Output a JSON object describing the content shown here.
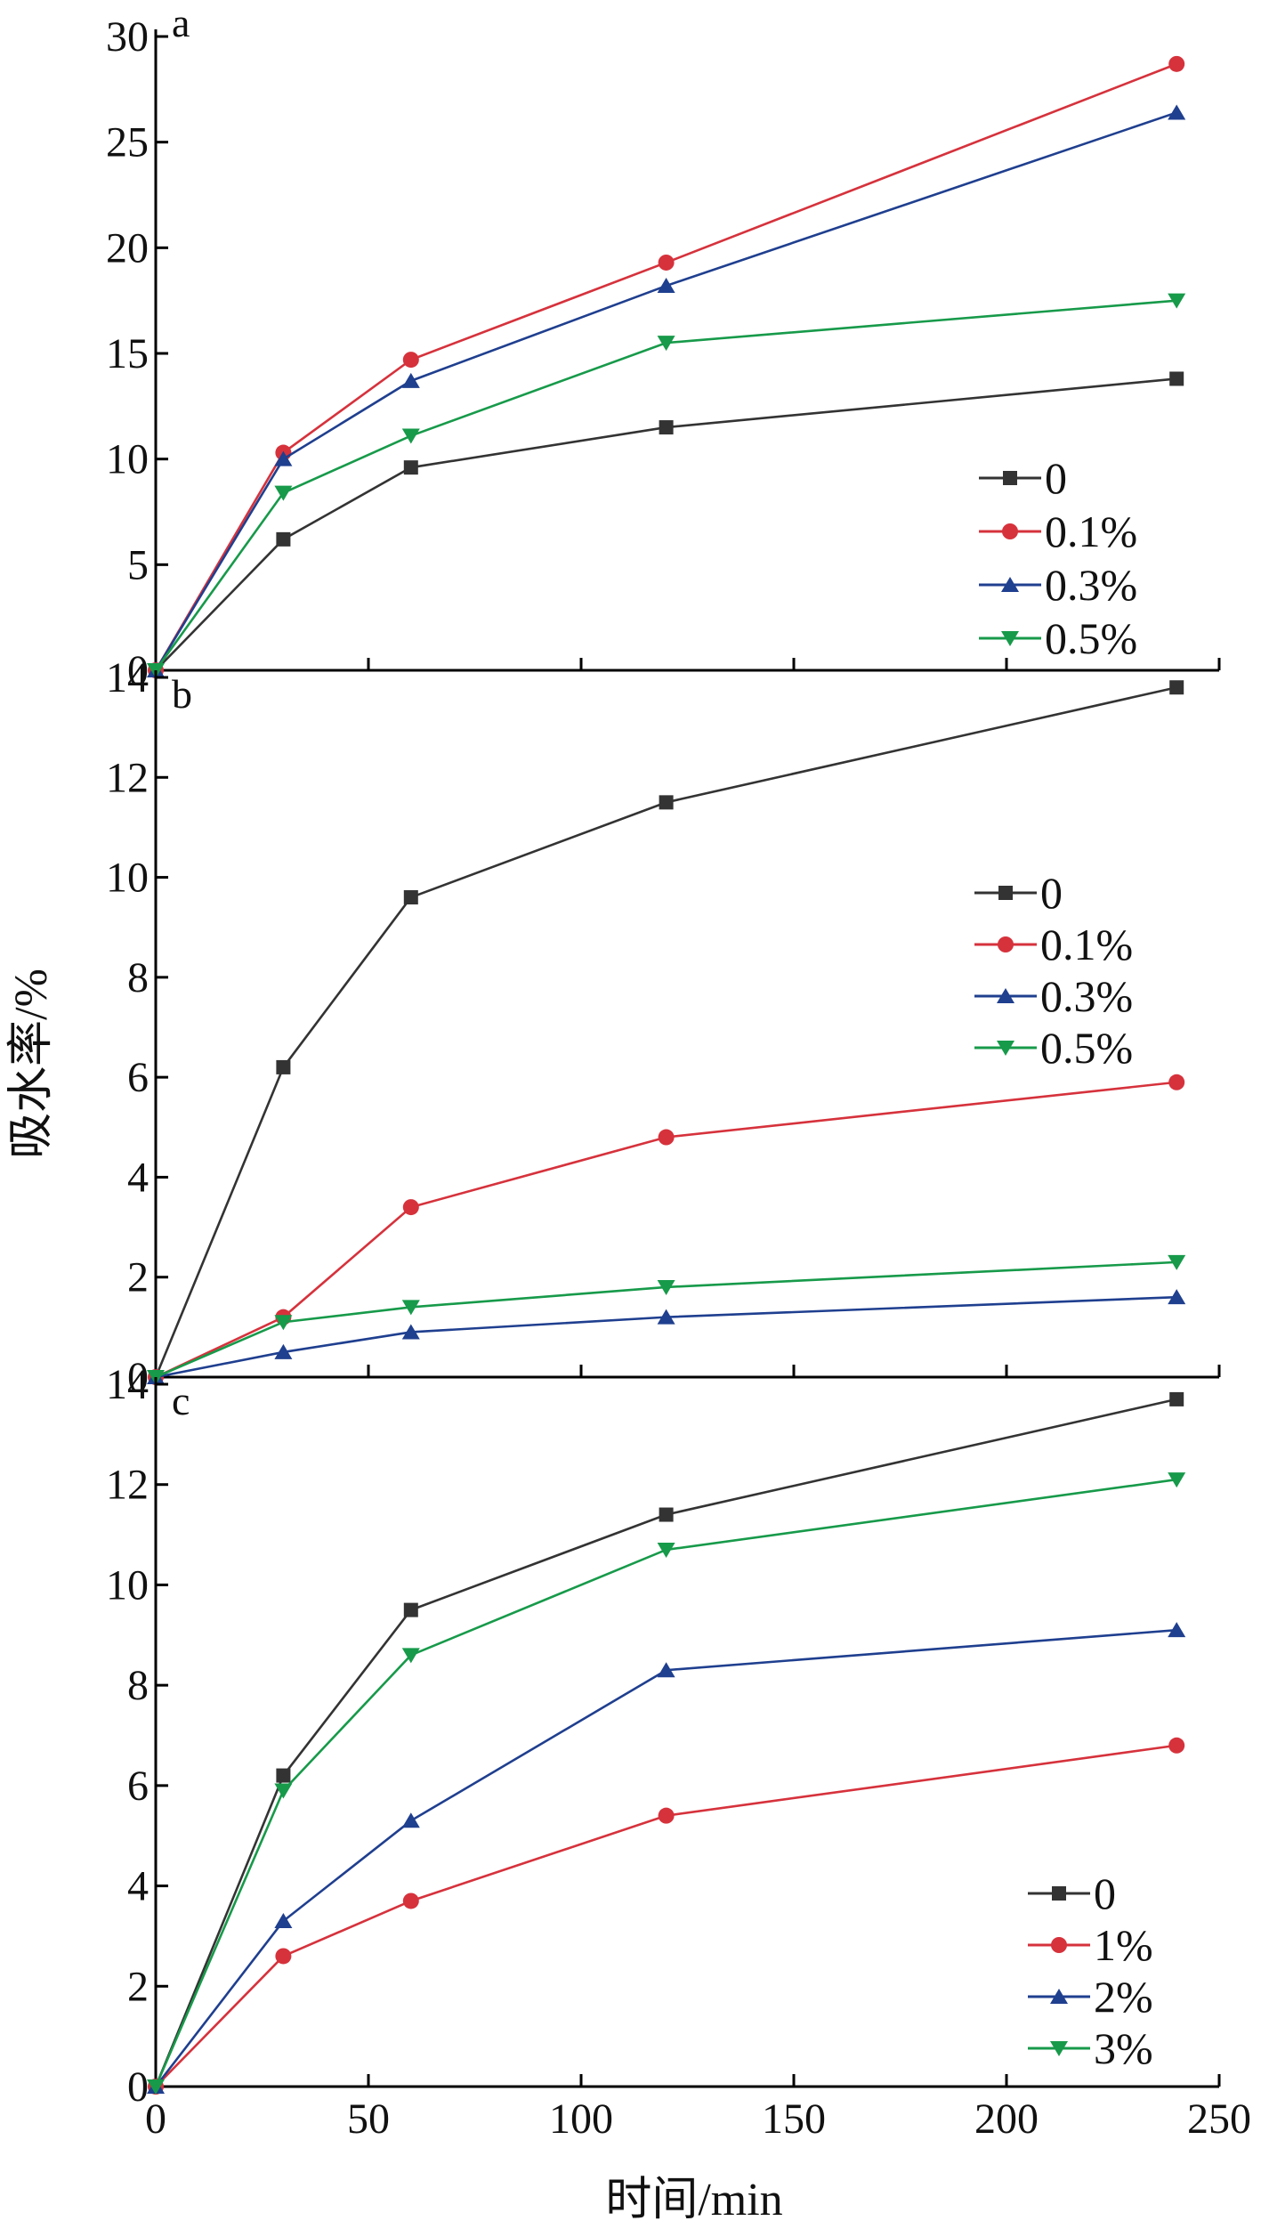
{
  "figure": {
    "xlabel": "时间/min",
    "ylabel": "吸水率/%"
  },
  "chart_data": [
    {
      "type": "line",
      "panel": "a",
      "xlim": [
        0,
        250
      ],
      "ylim": [
        0,
        30
      ],
      "yticks": [
        "0",
        "5",
        "10",
        "15",
        "20",
        "25",
        "30"
      ],
      "x": [
        0,
        30,
        60,
        120,
        240
      ],
      "legend_position": "bottom-right",
      "series": [
        {
          "name": "0",
          "marker": "square",
          "color": "#333333",
          "values": [
            0,
            6.2,
            9.6,
            11.5,
            13.8
          ]
        },
        {
          "name": "0.1%",
          "marker": "circle",
          "color": "#d6323c",
          "values": [
            0,
            10.3,
            14.7,
            19.3,
            28.7
          ]
        },
        {
          "name": "0.3%",
          "marker": "triangle-up",
          "color": "#1f3f8f",
          "values": [
            0,
            10.0,
            13.7,
            18.2,
            26.4
          ]
        },
        {
          "name": "0.5%",
          "marker": "triangle-down",
          "color": "#179a4a",
          "values": [
            0,
            8.4,
            11.1,
            15.5,
            17.5
          ]
        }
      ]
    },
    {
      "type": "line",
      "panel": "b",
      "xlim": [
        0,
        250
      ],
      "ylim": [
        0,
        14
      ],
      "yticks": [
        "0",
        "2",
        "4",
        "6",
        "8",
        "10",
        "12",
        "14"
      ],
      "x": [
        0,
        30,
        60,
        120,
        240
      ],
      "legend_position": "middle-right",
      "series": [
        {
          "name": "0",
          "marker": "square",
          "color": "#333333",
          "values": [
            0,
            6.2,
            9.6,
            11.5,
            13.8
          ]
        },
        {
          "name": "0.1%",
          "marker": "circle",
          "color": "#d6323c",
          "values": [
            0,
            1.2,
            3.4,
            4.8,
            5.9
          ]
        },
        {
          "name": "0.3%",
          "marker": "triangle-up",
          "color": "#1f3f8f",
          "values": [
            0,
            0.5,
            0.9,
            1.2,
            1.6
          ]
        },
        {
          "name": "0.5%",
          "marker": "triangle-down",
          "color": "#179a4a",
          "values": [
            0,
            1.1,
            1.4,
            1.8,
            2.3
          ]
        }
      ]
    },
    {
      "type": "line",
      "panel": "c",
      "xlim": [
        0,
        250
      ],
      "ylim": [
        0,
        14
      ],
      "yticks": [
        "0",
        "2",
        "4",
        "6",
        "8",
        "10",
        "12",
        "14"
      ],
      "xticks": [
        "0",
        "50",
        "100",
        "150",
        "200",
        "250"
      ],
      "x": [
        0,
        30,
        60,
        120,
        240
      ],
      "legend_position": "bottom-right",
      "series": [
        {
          "name": "0",
          "marker": "square",
          "color": "#333333",
          "values": [
            0,
            6.2,
            9.5,
            11.4,
            13.7
          ]
        },
        {
          "name": "1%",
          "marker": "circle",
          "color": "#d6323c",
          "values": [
            0,
            2.6,
            3.7,
            5.4,
            6.8
          ]
        },
        {
          "name": "2%",
          "marker": "triangle-up",
          "color": "#1f3f8f",
          "values": [
            0,
            3.3,
            5.3,
            8.3,
            9.1
          ]
        },
        {
          "name": "3%",
          "marker": "triangle-down",
          "color": "#179a4a",
          "values": [
            0,
            5.9,
            8.6,
            10.7,
            12.1
          ]
        }
      ]
    }
  ]
}
